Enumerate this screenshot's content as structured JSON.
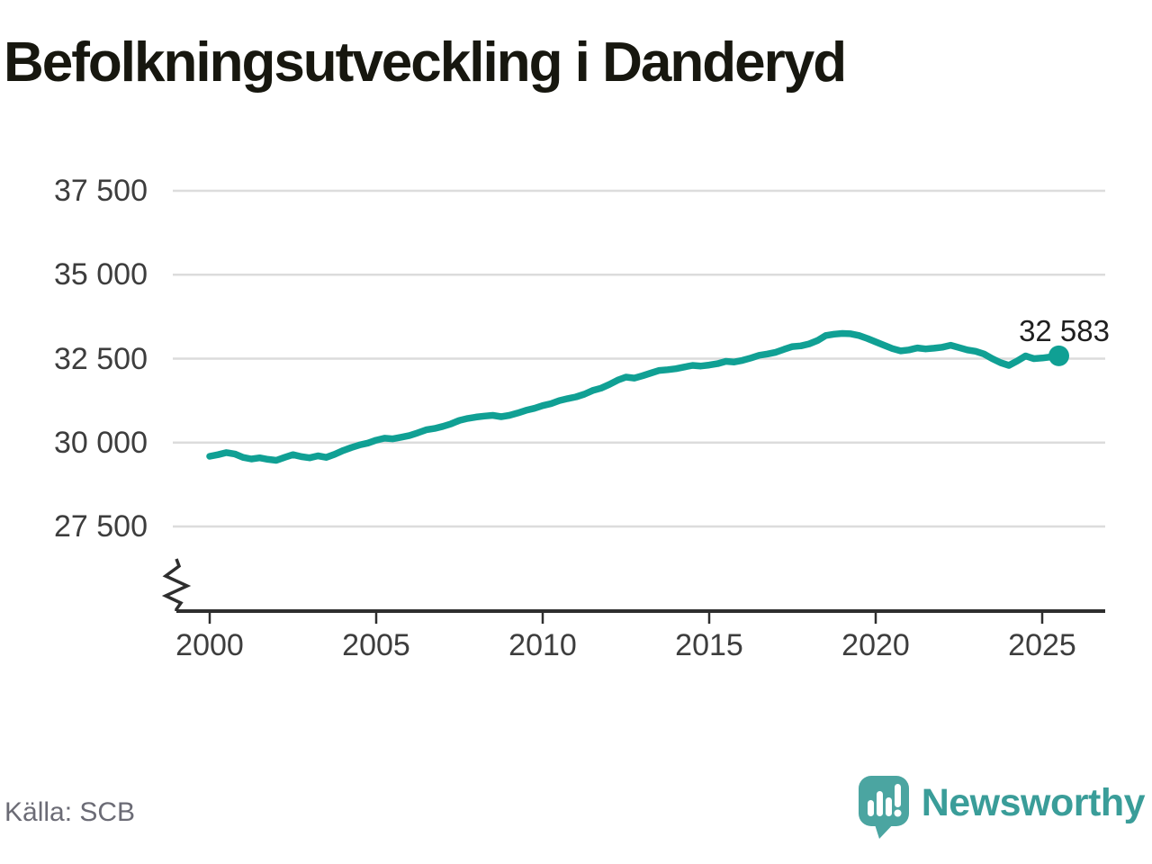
{
  "title": "Befolkningsutveckling i Danderyd",
  "source": "Källa: SCB",
  "brand": {
    "name": "Newsworthy"
  },
  "colors": {
    "line": "#10a094",
    "grid": "#dcdcdc",
    "axis": "#2e2e2e",
    "badge": "#4ba5a1",
    "wordmark": "#3a9d99"
  },
  "chart_data": {
    "type": "line",
    "title": "Befolkningsutveckling i Danderyd",
    "xlabel": "",
    "ylabel": "",
    "x_start": 2000,
    "x_step": 0.25,
    "xlim": [
      2000,
      2026
    ],
    "ylim": [
      27500,
      37500
    ],
    "axis_break_at_bottom": true,
    "grid": "horizontal",
    "legend": "none",
    "end_label": "32 583",
    "latest_value": 32583,
    "y_ticks": [
      {
        "value": 37500,
        "label": "37 500"
      },
      {
        "value": 35000,
        "label": "35 000"
      },
      {
        "value": 32500,
        "label": "32 500"
      },
      {
        "value": 30000,
        "label": "30 000"
      },
      {
        "value": 27500,
        "label": "27 500"
      }
    ],
    "x_ticks": [
      {
        "value": 2000,
        "label": "2000"
      },
      {
        "value": 2005,
        "label": "2005"
      },
      {
        "value": 2010,
        "label": "2010"
      },
      {
        "value": 2015,
        "label": "2015"
      },
      {
        "value": 2020,
        "label": "2020"
      },
      {
        "value": 2025,
        "label": "2025"
      }
    ],
    "series": [
      {
        "name": "Befolkning",
        "values": [
          29590,
          29640,
          29700,
          29660,
          29560,
          29510,
          29545,
          29500,
          29470,
          29560,
          29640,
          29580,
          29545,
          29605,
          29560,
          29650,
          29760,
          29850,
          29930,
          29985,
          30070,
          30130,
          30110,
          30160,
          30210,
          30290,
          30380,
          30420,
          30480,
          30560,
          30660,
          30720,
          30760,
          30790,
          30810,
          30770,
          30810,
          30880,
          30960,
          31020,
          31100,
          31160,
          31250,
          31310,
          31360,
          31440,
          31550,
          31620,
          31730,
          31860,
          31950,
          31920,
          31990,
          32070,
          32150,
          32170,
          32200,
          32250,
          32300,
          32280,
          32310,
          32350,
          32420,
          32400,
          32450,
          32520,
          32600,
          32640,
          32690,
          32780,
          32860,
          32880,
          32940,
          33040,
          33190,
          33230,
          33250,
          33240,
          33190,
          33100,
          33000,
          32900,
          32800,
          32730,
          32760,
          32820,
          32790,
          32810,
          32840,
          32900,
          32830,
          32760,
          32720,
          32640,
          32500,
          32380,
          32300,
          32430,
          32580,
          32500,
          32520,
          32550,
          32583
        ]
      }
    ]
  }
}
